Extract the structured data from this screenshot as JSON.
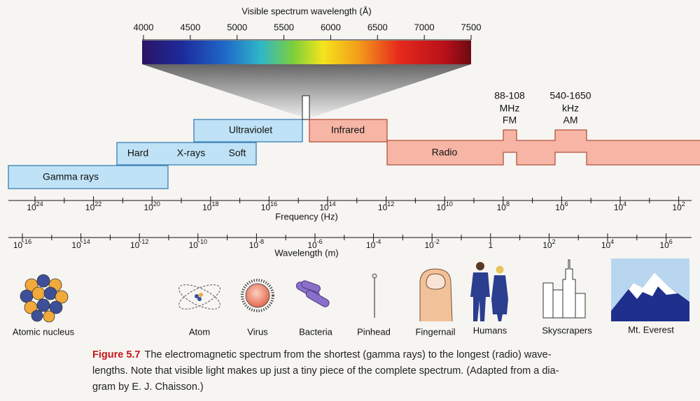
{
  "visible": {
    "title": "Visible spectrum wavelength (Å)",
    "ticks": [
      "4000",
      "4500",
      "5000",
      "5500",
      "6000",
      "6500",
      "7000",
      "7500"
    ]
  },
  "bands": {
    "gamma": "Gamma rays",
    "hard": "Hard",
    "xrays": "X-rays",
    "soft": "Soft",
    "ultraviolet": "Ultraviolet",
    "infrared": "Infrared",
    "radio": "Radio"
  },
  "fm": {
    "range": "88-108",
    "unit": "MHz",
    "name": "FM"
  },
  "am": {
    "range": "540-1650",
    "unit": "kHz",
    "name": "AM"
  },
  "frequency": {
    "label": "Frequency (Hz)",
    "ticks": [
      {
        "base": "10",
        "exp": "24"
      },
      {
        "base": "10",
        "exp": "22"
      },
      {
        "base": "10",
        "exp": "20"
      },
      {
        "base": "10",
        "exp": "18"
      },
      {
        "base": "10",
        "exp": "16"
      },
      {
        "base": "10",
        "exp": "14"
      },
      {
        "base": "10",
        "exp": "12"
      },
      {
        "base": "10",
        "exp": "10"
      },
      {
        "base": "10",
        "exp": "8"
      },
      {
        "base": "10",
        "exp": "6"
      },
      {
        "base": "10",
        "exp": "4"
      },
      {
        "base": "10",
        "exp": "2"
      }
    ]
  },
  "wavelength": {
    "label": "Wavelength (m)",
    "ticks": [
      {
        "base": "10",
        "exp": "-16"
      },
      {
        "base": "10",
        "exp": "-14"
      },
      {
        "base": "10",
        "exp": "-12"
      },
      {
        "base": "10",
        "exp": "-10"
      },
      {
        "base": "10",
        "exp": "-8"
      },
      {
        "base": "10",
        "exp": "-6"
      },
      {
        "base": "10",
        "exp": "-4"
      },
      {
        "base": "10",
        "exp": "-2"
      },
      {
        "base": "1"
      },
      {
        "base": "10",
        "exp": "2"
      },
      {
        "base": "10",
        "exp": "4"
      },
      {
        "base": "10",
        "exp": "6"
      }
    ]
  },
  "objects": [
    "Atomic nucleus",
    "Atom",
    "Virus",
    "Bacteria",
    "Pinhead",
    "Fingernail",
    "Humans",
    "Skyscrapers",
    "Mt. Everest"
  ],
  "caption": {
    "label": "Figure 5.7",
    "lines": [
      "The electromagnetic spectrum from the shortest (gamma rays) to the longest (radio) wave-",
      "lengths. Note that visible light makes up just a tiny piece of the complete spectrum. (Adapted from a dia-",
      "gram by E. J. Chaisson.)"
    ]
  }
}
